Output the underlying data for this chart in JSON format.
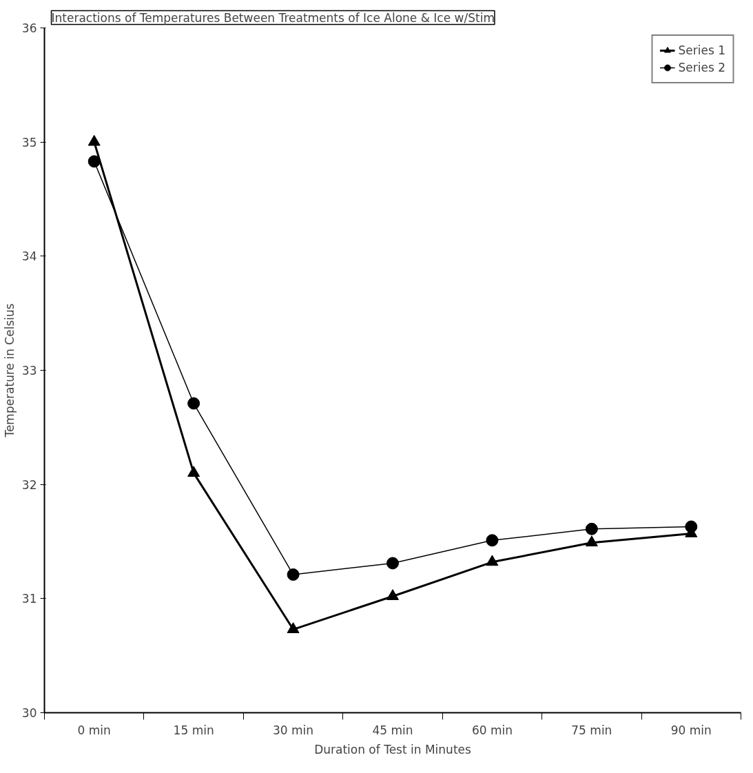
{
  "chart_data": {
    "type": "line",
    "title": "Interactions of Temperatures Between Treatments of Ice Alone & Ice w/Stim",
    "xlabel": "Duration of Test in Minutes",
    "ylabel": "Temperature in Celsius",
    "categories": [
      "0 min",
      "15 min",
      "30 min",
      "45 min",
      "60 min",
      "75 min",
      "90 min"
    ],
    "series": [
      {
        "name": "Series 1",
        "color": "#000000",
        "marker": "triangle",
        "values": [
          35.0,
          32.1,
          30.73,
          31.02,
          31.32,
          31.49,
          31.57
        ]
      },
      {
        "name": "Series 2",
        "color": "#000000",
        "marker": "circle",
        "values": [
          34.83,
          32.71,
          31.21,
          31.31,
          31.51,
          31.61,
          31.63
        ]
      }
    ],
    "ylim": [
      30,
      36
    ],
    "yticks": [
      30,
      31,
      32,
      33,
      34,
      35,
      36
    ],
    "grid": false,
    "legend": "top right",
    "line_style": "solid"
  }
}
